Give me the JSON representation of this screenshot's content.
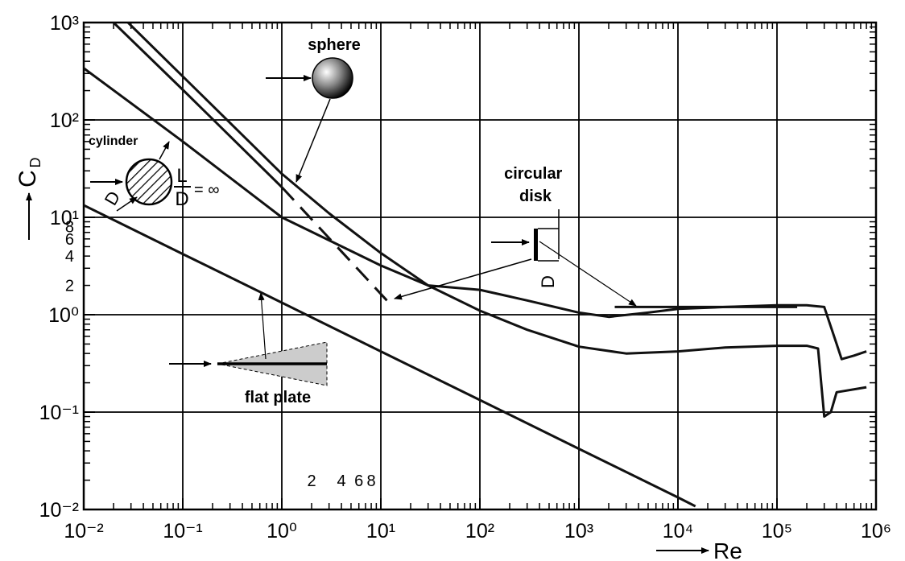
{
  "chart_data": {
    "type": "line",
    "xlabel": "Re",
    "ylabel": "C",
    "ylabel_subscript": "D",
    "log_x": true,
    "log_y": true,
    "grid": true,
    "xlim": [
      0.01,
      1000000
    ],
    "ylim": [
      0.01,
      1000
    ],
    "xticks": [
      {
        "value": 0.01,
        "label": "10⁻²"
      },
      {
        "value": 0.1,
        "label": "10⁻¹"
      },
      {
        "value": 1,
        "label": "10⁰"
      },
      {
        "value": 10,
        "label": "10¹"
      },
      {
        "value": 100,
        "label": "10²"
      },
      {
        "value": 1000,
        "label": "10³"
      },
      {
        "value": 10000,
        "label": "10⁴"
      },
      {
        "value": 100000,
        "label": "10⁵"
      },
      {
        "value": 1000000,
        "label": "10⁶"
      }
    ],
    "yticks": [
      {
        "value": 0.01,
        "label": "10⁻²"
      },
      {
        "value": 0.1,
        "label": "10⁻¹"
      },
      {
        "value": 1,
        "label": "10⁰"
      },
      {
        "value": 10,
        "label": "10¹"
      },
      {
        "value": 100,
        "label": "10²"
      },
      {
        "value": 1000,
        "label": "10³"
      }
    ],
    "xminorticks": [
      0.02,
      0.03,
      0.04,
      0.05,
      0.06,
      0.07,
      0.08,
      0.09,
      0.2,
      0.3,
      0.4,
      0.5,
      0.6,
      0.7,
      0.8,
      0.9,
      2,
      3,
      4,
      5,
      6,
      7,
      8,
      9,
      20,
      30,
      40,
      50,
      60,
      70,
      80,
      90,
      200,
      300,
      400,
      500,
      600,
      700,
      800,
      900,
      2000,
      3000,
      4000,
      5000,
      6000,
      7000,
      8000,
      9000,
      20000,
      30000,
      40000,
      50000,
      60000,
      70000,
      80000,
      90000,
      200000,
      300000,
      400000,
      500000,
      600000,
      700000,
      800000,
      900000
    ],
    "yminorticks": [
      0.02,
      0.03,
      0.04,
      0.05,
      0.06,
      0.07,
      0.08,
      0.09,
      0.2,
      0.3,
      0.4,
      0.5,
      0.6,
      0.7,
      0.8,
      0.9,
      2,
      3,
      4,
      5,
      6,
      7,
      8,
      9,
      20,
      30,
      40,
      50,
      60,
      70,
      80,
      90,
      200,
      300,
      400,
      500,
      600,
      700,
      800,
      900
    ],
    "xminor_labels": [
      2,
      4,
      6,
      8
    ],
    "yminor_labels": [
      8,
      6,
      4,
      2
    ],
    "series": [
      {
        "name": "sphere",
        "color": "#111111",
        "x": [
          0.028,
          0.1,
          1,
          3,
          10,
          30,
          100,
          300,
          1000,
          3000,
          10000,
          30000,
          100000,
          200000,
          260000,
          300000,
          350000,
          400000,
          800000
        ],
        "values": [
          1000,
          280,
          28,
          11,
          4.3,
          2.0,
          1.1,
          0.7,
          0.47,
          0.4,
          0.42,
          0.46,
          0.48,
          0.48,
          0.45,
          0.09,
          0.1,
          0.16,
          0.18
        ]
      },
      {
        "name": "cylinder",
        "color": "#111111",
        "x": [
          0.01,
          0.1,
          1,
          10,
          30,
          100,
          300,
          1000,
          2000,
          5000,
          10000,
          30000,
          100000,
          200000,
          300000,
          400000,
          450000,
          600000,
          800000
        ],
        "values": [
          340,
          60,
          10,
          3.2,
          2.0,
          1.8,
          1.4,
          1.05,
          0.95,
          1.05,
          1.15,
          1.2,
          1.25,
          1.25,
          1.2,
          0.5,
          0.35,
          0.38,
          0.42
        ]
      },
      {
        "name": "circular disk",
        "color": "#111111",
        "x": [
          0.02,
          0.1,
          1,
          11.5,
          2300,
          160000
        ],
        "values": [
          1000,
          204,
          20.4,
          null,
          1.2,
          1.2
        ]
      },
      {
        "color": "#111111",
        "dashed": true,
        "x": [
          1,
          11.5
        ],
        "values": [
          20.4,
          1.4
        ]
      },
      {
        "name": "flat plate",
        "color": "#111111",
        "x": [
          0.01,
          0.1,
          1,
          10,
          100,
          1000,
          10000,
          15000
        ],
        "values": [
          13.3,
          4.2,
          1.33,
          0.42,
          0.133,
          0.042,
          0.0133,
          0.0108
        ]
      }
    ],
    "annotations": {
      "cylinder_diameter": "D",
      "ratio_numerator": "L",
      "ratio_denominator": "D",
      "ratio_value": "= ∞",
      "disk_diameter": "D"
    }
  }
}
